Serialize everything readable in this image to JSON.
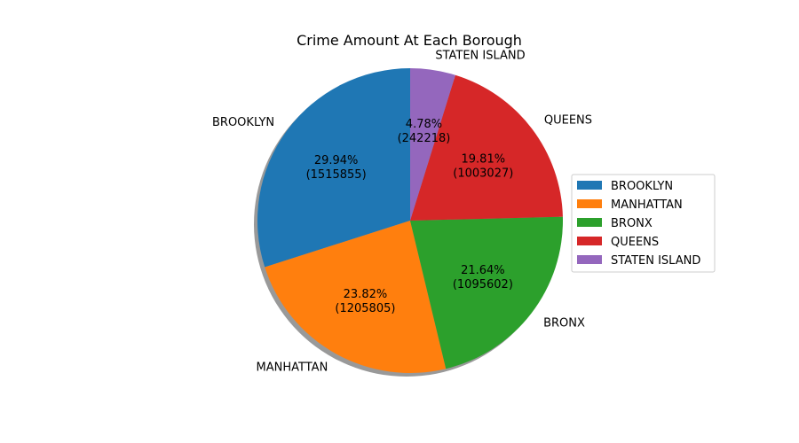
{
  "chart_data": {
    "type": "pie",
    "title": "Crime Amount At Each Borough",
    "legend_position": "right",
    "shadow": true,
    "start_angle_deg": 90,
    "direction": "counterclockwise",
    "slices": [
      {
        "label": "BROOKLYN",
        "value": 1515855,
        "percent_label": "29.94%",
        "count_label": "(1515855)",
        "color": "#1f77b4"
      },
      {
        "label": "MANHATTAN",
        "value": 1205805,
        "percent_label": "23.82%",
        "count_label": "(1205805)",
        "color": "#ff7f0e"
      },
      {
        "label": "BRONX",
        "value": 1095602,
        "percent_label": "21.64%",
        "count_label": "(1095602)",
        "color": "#2ca02c"
      },
      {
        "label": "QUEENS",
        "value": 1003027,
        "percent_label": "19.81%",
        "count_label": "(1003027)",
        "color": "#d62728"
      },
      {
        "label": "STATEN ISLAND",
        "value": 242218,
        "percent_label": "4.78%",
        "count_label": "(242218)",
        "color": "#9467bd"
      }
    ]
  }
}
